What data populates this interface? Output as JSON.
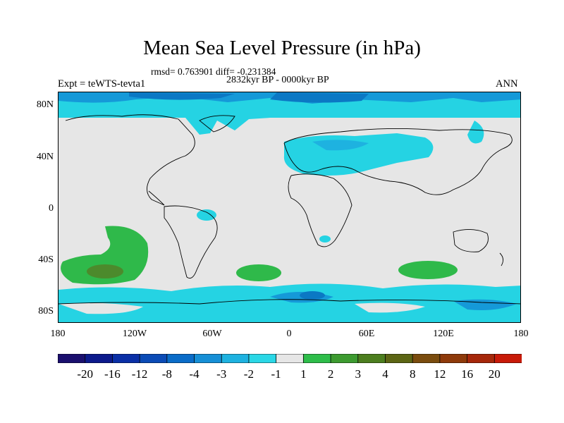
{
  "title": "Mean Sea Level Pressure (in hPa)",
  "stats": "rmsd= 0.763901 diff= -0.231384",
  "period": "2832kyr BP - 0000kyr BP",
  "expt": "Expt = teWTS-tevta1",
  "season": "ANN",
  "lat_labels": [
    "80N",
    "40N",
    "0",
    "40S",
    "80S"
  ],
  "lon_labels": [
    "180",
    "120W",
    "60W",
    "0",
    "60E",
    "120E",
    "180"
  ],
  "colorbar": {
    "colors": [
      "#1a0f6e",
      "#0c1a8c",
      "#0a2fa6",
      "#0b4bb6",
      "#0a6cc8",
      "#168fd6",
      "#1eb2e0",
      "#2ad7e6",
      "#e6e6e6",
      "#2ebd4a",
      "#3d9b30",
      "#4c7e1f",
      "#5c6514",
      "#7a4c0e",
      "#8e3a0a",
      "#a6280a",
      "#c81a08"
    ],
    "labels": [
      "-20",
      "-16",
      "-12",
      "-8",
      "-4",
      "-3",
      "-2",
      "-1",
      "1",
      "2",
      "3",
      "4",
      "8",
      "12",
      "16",
      "20"
    ]
  },
  "map": {
    "background": "#e6e6e6",
    "anomaly_levels_hpa": [
      -4,
      -3,
      -2,
      2,
      3
    ],
    "level_colors": {
      "-4": "#0b78c4",
      "-3": "#1599d8",
      "-2": "#25d3e3",
      "2": "#2fb94a",
      "3": "#4c8a2c"
    }
  }
}
